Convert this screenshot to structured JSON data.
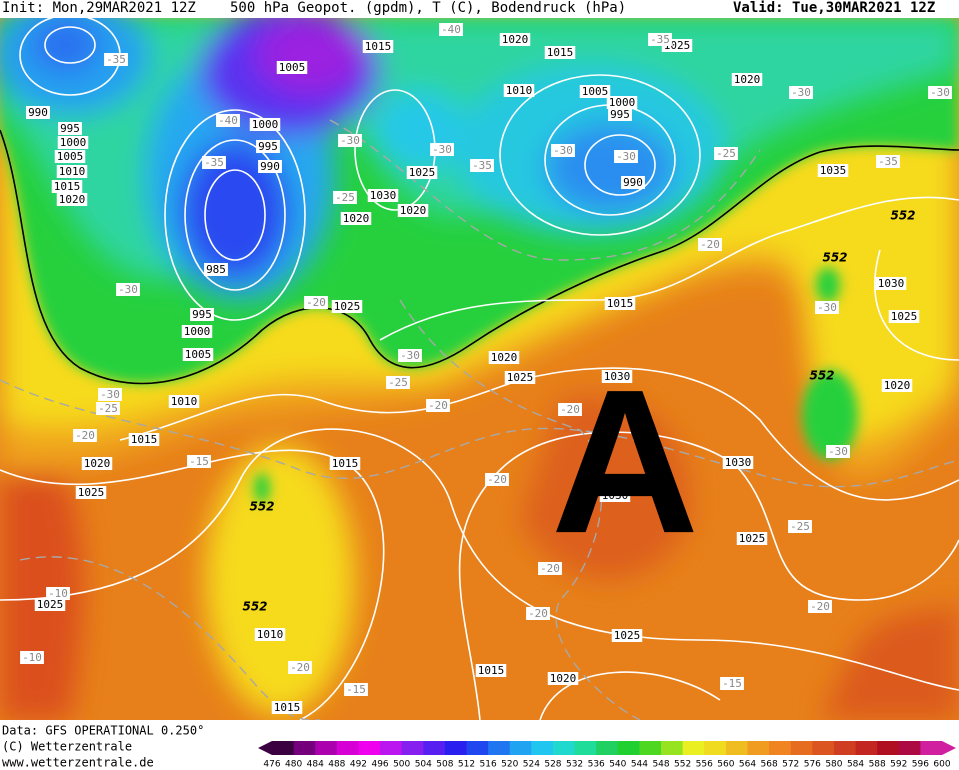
{
  "header": {
    "init": "Init: Mon,29MAR2021 12Z",
    "title": "500 hPa Geopot. (gpdm), T (C), Bodendruck (hPa)",
    "valid": "Valid: Tue,30MAR2021 12Z"
  },
  "map": {
    "pressure_labels": [
      1015,
      1005,
      1020,
      1015,
      1025,
      1020,
      1010,
      1005,
      1000,
      995,
      990,
      995,
      1000,
      1005,
      1010,
      1015,
      1020,
      1000,
      995,
      990,
      1030,
      1025,
      1020,
      1020,
      990,
      1035,
      985,
      995,
      1000,
      1005,
      1025,
      1015,
      1030,
      1025,
      1020,
      1025,
      1030,
      1020,
      1010,
      1015,
      1020,
      1015,
      1025,
      1030,
      1030,
      1025,
      1025,
      1010,
      1025,
      1015,
      1020,
      1015
    ],
    "temperature_labels": [
      -40,
      -35,
      -35,
      -30,
      -30,
      -40,
      -30,
      -30,
      -35,
      -30,
      -30,
      -25,
      -35,
      -35,
      -25,
      -20,
      -30,
      -20,
      -30,
      -30,
      -25,
      -30,
      -25,
      -20,
      -20,
      -20,
      -15,
      -30,
      -20,
      -25,
      -20,
      -10,
      -20,
      -20,
      -10,
      -20,
      -15,
      -15
    ],
    "height_labels": [
      552,
      552,
      552,
      552,
      552
    ],
    "high_marker": "A"
  },
  "footer": {
    "data": "Data: GFS OPERATIONAL 0.250°",
    "copyright": "(C) Wetterzentrale",
    "url": "www.wetterzentrale.de"
  },
  "color_scale": {
    "labels": [
      476,
      480,
      484,
      488,
      492,
      496,
      500,
      504,
      508,
      512,
      516,
      520,
      524,
      528,
      532,
      536,
      540,
      544,
      548,
      552,
      556,
      560,
      564,
      568,
      572,
      576,
      580,
      584,
      588,
      592,
      596,
      600
    ]
  }
}
